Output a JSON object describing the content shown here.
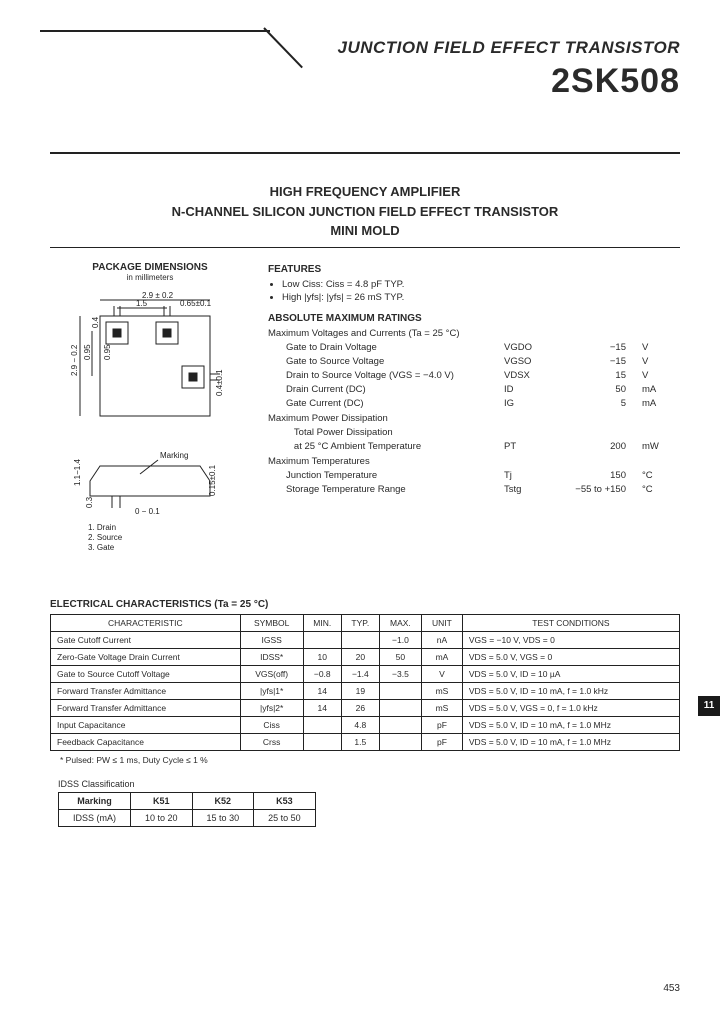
{
  "header": {
    "category": "JUNCTION FIELD EFFECT TRANSISTOR",
    "part_number": "2SK508"
  },
  "subtitle": {
    "line1": "HIGH FREQUENCY AMPLIFIER",
    "line2": "N-CHANNEL SILICON JUNCTION FIELD EFFECT TRANSISTOR",
    "line3": "MINI MOLD"
  },
  "package": {
    "title": "PACKAGE DIMENSIONS",
    "unit_note": "in millimeters",
    "dims": {
      "w_total": "2.9 ± 0.2",
      "pad_gap": "1.5",
      "pad_edge": "0.65±0.1",
      "h_total": "2.9 − 0.2",
      "inner1": "0.95",
      "inner2": "0.95",
      "tab": "0.4",
      "tab2": "0.4±0.1",
      "marking": "Marking",
      "side_h": "1.1−1.4",
      "lead_h": "0.3",
      "clear": "0 − 0.1",
      "lead_w": "0.15±0.1"
    },
    "pins": {
      "p1": "1.  Drain",
      "p2": "2.  Source",
      "p3": "3.  Gate"
    }
  },
  "features": {
    "heading": "FEATURES",
    "items": [
      "Low Ciss:  Ciss = 4.8 pF TYP.",
      "High |yfs|: |yfs| = 26 mS TYP."
    ]
  },
  "amr": {
    "heading": "ABSOLUTE MAXIMUM RATINGS",
    "cond": "Maximum Voltages and Currents (Ta = 25 °C)",
    "rows": [
      {
        "name": "Gate to Drain Voltage",
        "sym": "VGDO",
        "val": "−15",
        "unit": "V"
      },
      {
        "name": "Gate to Source Voltage",
        "sym": "VGSO",
        "val": "−15",
        "unit": "V"
      },
      {
        "name": "Drain to Source Voltage (VGS = −4.0 V)",
        "sym": "VDSX",
        "val": "15",
        "unit": "V"
      },
      {
        "name": "Drain Current (DC)",
        "sym": "ID",
        "val": "50",
        "unit": "mA"
      },
      {
        "name": "Gate Current (DC)",
        "sym": "IG",
        "val": "5",
        "unit": "mA"
      }
    ],
    "power_h": "Maximum Power Dissipation",
    "power_rows": [
      {
        "name": "Total Power Dissipation",
        "sym": "",
        "val": "",
        "unit": ""
      },
      {
        "name": "at 25 °C Ambient Temperature",
        "sym": "PT",
        "val": "200",
        "unit": "mW"
      }
    ],
    "temp_h": "Maximum Temperatures",
    "temp_rows": [
      {
        "name": "Junction Temperature",
        "sym": "Tj",
        "val": "150",
        "unit": "°C"
      },
      {
        "name": "Storage Temperature Range",
        "sym": "Tstg",
        "val": "−55 to +150",
        "unit": "°C"
      }
    ]
  },
  "elec": {
    "heading": "ELECTRICAL CHARACTERISTICS (Ta = 25 °C)",
    "cols": [
      "CHARACTERISTIC",
      "SYMBOL",
      "MIN.",
      "TYP.",
      "MAX.",
      "UNIT",
      "TEST CONDITIONS"
    ],
    "rows": [
      [
        "Gate Cutoff Current",
        "IGSS",
        "",
        "",
        "−1.0",
        "nA",
        "VGS = −10 V, VDS = 0"
      ],
      [
        "Zero-Gate Voltage Drain Current",
        "IDSS*",
        "10",
        "20",
        "50",
        "mA",
        "VDS = 5.0 V, VGS = 0"
      ],
      [
        "Gate to Source Cutoff Voltage",
        "VGS(off)",
        "−0.8",
        "−1.4",
        "−3.5",
        "V",
        "VDS = 5.0 V, ID = 10 µA"
      ],
      [
        "Forward Transfer Admittance",
        "|yfs|1*",
        "14",
        "19",
        "",
        "mS",
        "VDS = 5.0 V, ID = 10 mA, f = 1.0 kHz"
      ],
      [
        "Forward Transfer Admittance",
        "|yfs|2*",
        "14",
        "26",
        "",
        "mS",
        "VDS = 5.0 V, VGS = 0, f = 1.0 kHz"
      ],
      [
        "Input Capacitance",
        "Ciss",
        "",
        "4.8",
        "",
        "pF",
        "VDS = 5.0 V, ID = 10 mA, f = 1.0 MHz"
      ],
      [
        "Feedback Capacitance",
        "Crss",
        "",
        "1.5",
        "",
        "pF",
        "VDS = 5.0 V, ID = 10 mA, f = 1.0 MHz"
      ]
    ],
    "footnote": "* Pulsed:  PW ≤ 1 ms,  Duty Cycle ≤ 1 %"
  },
  "classification": {
    "heading": "IDSS  Classification",
    "cols": [
      "Marking",
      "K51",
      "K52",
      "K53"
    ],
    "row_label": "IDSS (mA)",
    "vals": [
      "10 to 20",
      "15 to 30",
      "25 to 50"
    ]
  },
  "side_tab": "11",
  "page_number": "453"
}
